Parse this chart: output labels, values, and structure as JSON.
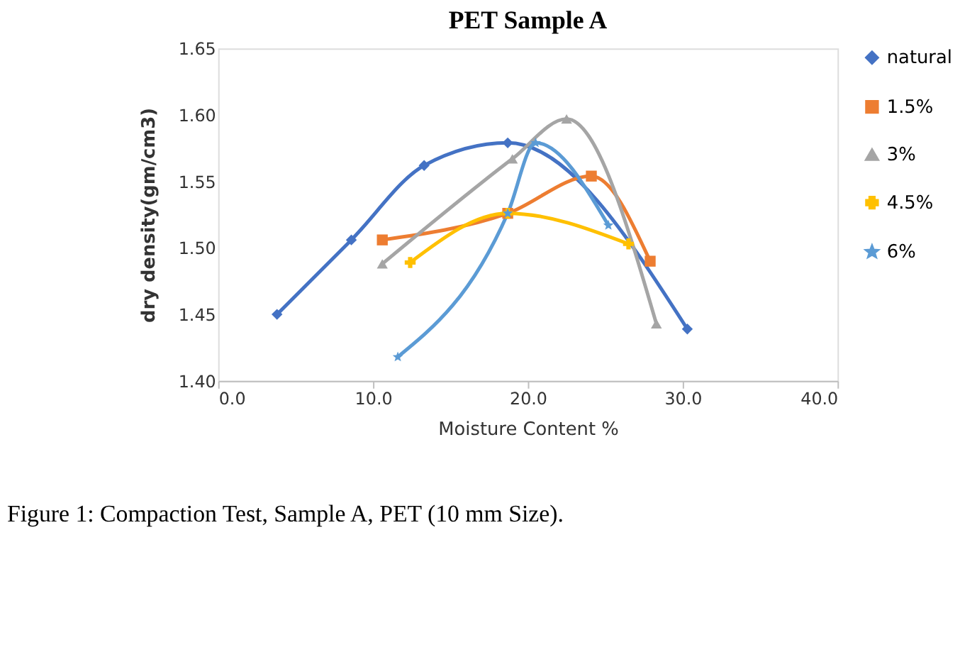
{
  "chart_data": {
    "type": "line",
    "title": "PET Sample A",
    "xlabel": "Moisture Content %",
    "ylabel": "dry density(gm/cm3)",
    "xlim": [
      0,
      40
    ],
    "xticks": [
      {
        "value": 0,
        "label": "0.0"
      },
      {
        "value": 10,
        "label": "10.0"
      },
      {
        "value": 20,
        "label": "20.0"
      },
      {
        "value": 30,
        "label": "30.0"
      },
      {
        "value": 40,
        "label": "40.0"
      }
    ],
    "ylim": [
      1.4,
      1.65
    ],
    "yticks": [
      {
        "value": 1.4,
        "label": "1.40"
      },
      {
        "value": 1.45,
        "label": "1.45"
      },
      {
        "value": 1.5,
        "label": "1.50"
      },
      {
        "value": 1.55,
        "label": "1.55"
      },
      {
        "value": 1.6,
        "label": "1.60"
      },
      {
        "value": 1.65,
        "label": "1.65"
      }
    ],
    "grid": false,
    "legend": "right",
    "line_style": "solid",
    "series": [
      {
        "name": "natural",
        "color": "#4472c4",
        "marker": "diamond",
        "x": [
          3.8,
          8.6,
          13.3,
          18.7,
          30.3
        ],
        "values": [
          1.45,
          1.506,
          1.562,
          1.579,
          1.439
        ]
      },
      {
        "name": "1.5%",
        "color": "#ed7d31",
        "marker": "square",
        "x": [
          10.6,
          18.7,
          24.1,
          27.9
        ],
        "values": [
          1.506,
          1.526,
          1.554,
          1.49
        ]
      },
      {
        "name": "3%",
        "color": "#a5a5a5",
        "marker": "triangle",
        "x": [
          10.6,
          19.0,
          22.5,
          28.3
        ],
        "values": [
          1.488,
          1.567,
          1.597,
          1.443
        ]
      },
      {
        "name": "4.5%",
        "color": "#ffc000",
        "marker": "cross",
        "x": [
          12.4,
          18.7,
          26.5
        ],
        "values": [
          1.489,
          1.526,
          1.503
        ]
      },
      {
        "name": "6%",
        "color": "#5b9bd5",
        "marker": "star",
        "x": [
          11.6,
          18.7,
          20.5,
          25.2
        ],
        "values": [
          1.418,
          1.526,
          1.579,
          1.517
        ]
      }
    ],
    "annotations": [
      "Figure 1: Compaction Test, Sample A, PET (10 mm Size)."
    ]
  }
}
